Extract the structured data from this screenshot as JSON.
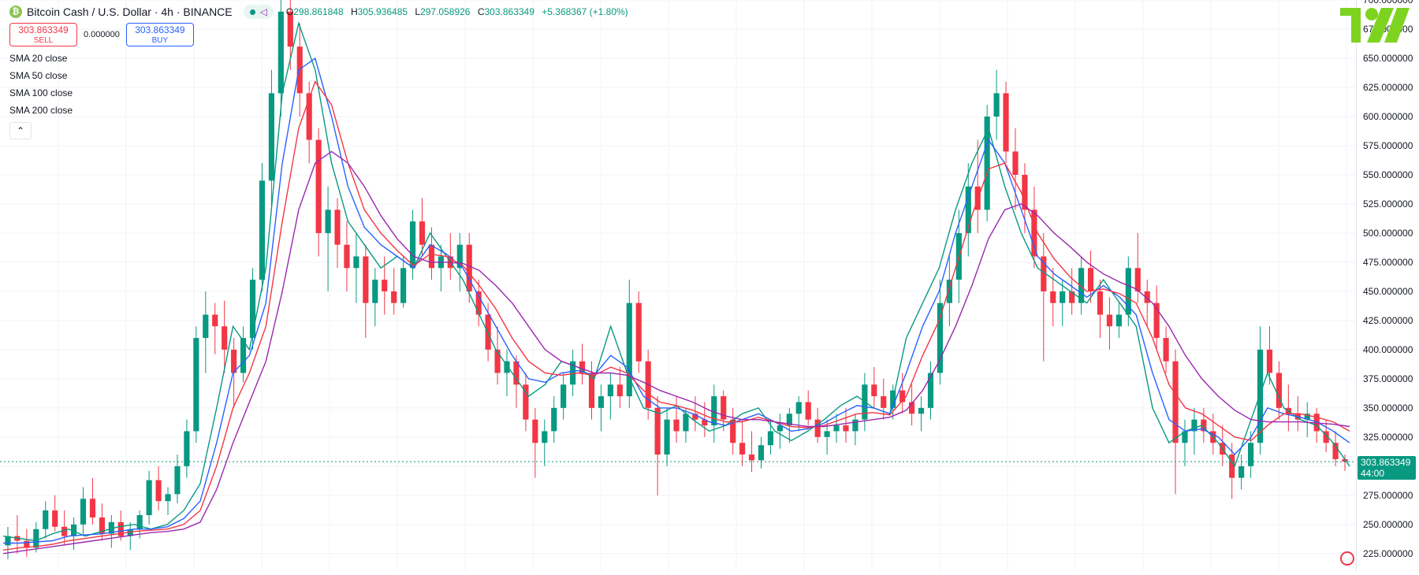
{
  "header": {
    "symbol_icon": "bitcoin-cash-logo",
    "title": "Bitcoin Cash / U.S. Dollar · 4h · BINANCE",
    "ohlc": {
      "o_label": "O",
      "o": "298.861848",
      "h_label": "H",
      "h": "305.936485",
      "l_label": "L",
      "l": "297.058926",
      "c_label": "C",
      "c": "303.863349",
      "change": "+5.368367 (+1.80%)"
    }
  },
  "trade": {
    "sell_price": "303.863349",
    "sell_label": "SELL",
    "spread": "0.000000",
    "buy_price": "303.863349",
    "buy_label": "BUY"
  },
  "indicators": [
    "SMA 20 close",
    "SMA 50 close",
    "SMA 100 close",
    "SMA 200 close"
  ],
  "collapse_glyph": "⌃",
  "price_tag": {
    "price": "303.863349",
    "countdown": "44:00"
  },
  "colors": {
    "up": "#089981",
    "down": "#f23645",
    "sma20": "#089981",
    "sma50": "#2962ff",
    "sma100": "#f23645",
    "sma200": "#9c27b0"
  },
  "chart_data": {
    "type": "line",
    "ylim": [
      210,
      700
    ],
    "y_ticks": [
      "225.000000",
      "250.000000",
      "275.000000",
      "300.000000",
      "325.000000",
      "350.000000",
      "375.000000",
      "400.000000",
      "425.000000",
      "450.000000",
      "475.000000",
      "500.000000",
      "525.000000",
      "550.000000",
      "575.000000",
      "600.000000",
      "625.000000",
      "650.000000",
      "675.000000",
      "700.000000"
    ],
    "y_tick_values": [
      225,
      250,
      275,
      300,
      325,
      350,
      375,
      400,
      425,
      450,
      475,
      500,
      525,
      550,
      575,
      600,
      625,
      650,
      675,
      700
    ],
    "grid": true,
    "last_price": 303.863349,
    "series": [
      {
        "name": "SMA 20 close",
        "values": [
          240,
          238,
          236,
          242,
          246,
          240,
          244,
          248,
          250,
          246,
          250,
          262,
          285,
          350,
          420,
          400,
          470,
          620,
          680,
          640,
          560,
          510,
          490,
          470,
          480,
          470,
          500,
          480,
          460,
          430,
          400,
          380,
          360,
          370,
          390,
          385,
          375,
          420,
          380,
          350,
          345,
          352,
          340,
          330,
          335,
          345,
          350,
          330,
          322,
          330,
          340,
          352,
          360,
          350,
          345,
          410,
          440,
          470,
          520,
          560,
          590,
          540,
          500,
          470,
          460,
          450,
          440,
          460,
          440,
          420,
          350,
          320,
          330,
          335,
          320,
          300,
          340,
          380,
          350,
          340,
          335,
          320,
          300
        ]
      },
      {
        "name": "SMA 50 close",
        "values": [
          234,
          234,
          235,
          236,
          240,
          241,
          242,
          244,
          246,
          246,
          248,
          255,
          270,
          320,
          380,
          395,
          440,
          560,
          640,
          650,
          600,
          540,
          505,
          490,
          480,
          470,
          490,
          482,
          470,
          445,
          420,
          395,
          375,
          372,
          380,
          382,
          378,
          395,
          385,
          360,
          350,
          350,
          345,
          338,
          335,
          340,
          345,
          338,
          330,
          332,
          337,
          345,
          352,
          350,
          345,
          380,
          420,
          450,
          500,
          540,
          580,
          560,
          520,
          480,
          465,
          455,
          445,
          455,
          445,
          430,
          380,
          340,
          330,
          332,
          325,
          310,
          325,
          350,
          345,
          342,
          338,
          330,
          320
        ]
      },
      {
        "name": "SMA 100 close",
        "values": [
          228,
          230,
          231,
          233,
          236,
          238,
          240,
          242,
          244,
          245,
          246,
          250,
          262,
          300,
          350,
          380,
          420,
          510,
          590,
          630,
          610,
          560,
          520,
          500,
          485,
          472,
          482,
          480,
          472,
          455,
          435,
          410,
          390,
          380,
          378,
          380,
          378,
          385,
          380,
          365,
          355,
          352,
          348,
          342,
          338,
          338,
          342,
          338,
          334,
          333,
          335,
          340,
          345,
          346,
          344,
          360,
          395,
          425,
          470,
          515,
          555,
          560,
          535,
          500,
          478,
          462,
          450,
          452,
          448,
          440,
          410,
          370,
          350,
          345,
          335,
          325,
          322,
          335,
          345,
          345,
          342,
          338,
          330
        ]
      },
      {
        "name": "SMA 200 close",
        "values": [
          225,
          227,
          229,
          231,
          233,
          235,
          237,
          239,
          241,
          243,
          244,
          246,
          252,
          280,
          320,
          355,
          390,
          450,
          520,
          560,
          570,
          560,
          540,
          515,
          495,
          480,
          475,
          475,
          474,
          468,
          455,
          440,
          420,
          400,
          390,
          385,
          380,
          380,
          378,
          372,
          365,
          360,
          355,
          348,
          343,
          340,
          340,
          338,
          336,
          334,
          334,
          336,
          338,
          340,
          342,
          348,
          365,
          390,
          420,
          455,
          495,
          520,
          525,
          515,
          500,
          488,
          475,
          465,
          458,
          452,
          440,
          420,
          395,
          375,
          360,
          348,
          340,
          338,
          338,
          338,
          337,
          336,
          334
        ]
      }
    ],
    "candles": [
      [
        232,
        248,
        220,
        240
      ],
      [
        240,
        258,
        225,
        236
      ],
      [
        236,
        246,
        222,
        230
      ],
      [
        230,
        252,
        226,
        246
      ],
      [
        246,
        270,
        238,
        262
      ],
      [
        262,
        275,
        244,
        248
      ],
      [
        248,
        262,
        232,
        240
      ],
      [
        240,
        256,
        228,
        250
      ],
      [
        250,
        282,
        240,
        272
      ],
      [
        272,
        290,
        250,
        256
      ],
      [
        256,
        268,
        236,
        242
      ],
      [
        242,
        258,
        230,
        252
      ],
      [
        252,
        262,
        236,
        240
      ],
      [
        240,
        252,
        228,
        246
      ],
      [
        246,
        262,
        238,
        258
      ],
      [
        258,
        296,
        250,
        288
      ],
      [
        288,
        300,
        262,
        270
      ],
      [
        270,
        282,
        258,
        276
      ],
      [
        276,
        310,
        268,
        300
      ],
      [
        300,
        340,
        290,
        330
      ],
      [
        330,
        420,
        320,
        410
      ],
      [
        410,
        450,
        380,
        430
      ],
      [
        430,
        440,
        396,
        420
      ],
      [
        420,
        442,
        380,
        400
      ],
      [
        400,
        410,
        350,
        380
      ],
      [
        380,
        420,
        372,
        410
      ],
      [
        410,
        470,
        400,
        460
      ],
      [
        460,
        560,
        450,
        545
      ],
      [
        545,
        640,
        520,
        620
      ],
      [
        620,
        700,
        600,
        690
      ],
      [
        690,
        700,
        640,
        660
      ],
      [
        660,
        680,
        600,
        620
      ],
      [
        620,
        630,
        560,
        580
      ],
      [
        580,
        590,
        480,
        500
      ],
      [
        500,
        540,
        450,
        520
      ],
      [
        520,
        530,
        470,
        490
      ],
      [
        490,
        510,
        450,
        470
      ],
      [
        470,
        500,
        440,
        480
      ],
      [
        480,
        490,
        410,
        440
      ],
      [
        440,
        470,
        420,
        460
      ],
      [
        460,
        480,
        430,
        450
      ],
      [
        450,
        470,
        430,
        440
      ],
      [
        440,
        480,
        436,
        470
      ],
      [
        470,
        520,
        460,
        510
      ],
      [
        510,
        530,
        480,
        490
      ],
      [
        490,
        505,
        460,
        470
      ],
      [
        470,
        490,
        450,
        480
      ],
      [
        480,
        500,
        460,
        470
      ],
      [
        470,
        500,
        450,
        490
      ],
      [
        490,
        500,
        440,
        450
      ],
      [
        450,
        460,
        420,
        430
      ],
      [
        430,
        440,
        390,
        400
      ],
      [
        400,
        420,
        370,
        380
      ],
      [
        380,
        400,
        360,
        390
      ],
      [
        390,
        395,
        350,
        370
      ],
      [
        370,
        380,
        330,
        340
      ],
      [
        340,
        350,
        290,
        320
      ],
      [
        320,
        340,
        300,
        330
      ],
      [
        330,
        360,
        320,
        350
      ],
      [
        350,
        380,
        340,
        370
      ],
      [
        370,
        400,
        360,
        390
      ],
      [
        390,
        405,
        370,
        380
      ],
      [
        380,
        390,
        340,
        350
      ],
      [
        350,
        370,
        330,
        360
      ],
      [
        360,
        380,
        340,
        370
      ],
      [
        370,
        385,
        350,
        360
      ],
      [
        360,
        460,
        350,
        440
      ],
      [
        440,
        450,
        380,
        390
      ],
      [
        390,
        400,
        340,
        350
      ],
      [
        350,
        360,
        275,
        310
      ],
      [
        310,
        350,
        300,
        340
      ],
      [
        340,
        360,
        320,
        330
      ],
      [
        330,
        350,
        320,
        345
      ],
      [
        345,
        360,
        330,
        340
      ],
      [
        340,
        355,
        325,
        335
      ],
      [
        335,
        370,
        320,
        360
      ],
      [
        360,
        365,
        330,
        340
      ],
      [
        340,
        350,
        310,
        320
      ],
      [
        320,
        340,
        300,
        310
      ],
      [
        310,
        330,
        295,
        305
      ],
      [
        305,
        325,
        298,
        318
      ],
      [
        318,
        340,
        310,
        330
      ],
      [
        330,
        345,
        315,
        335
      ],
      [
        335,
        350,
        320,
        345
      ],
      [
        345,
        360,
        330,
        355
      ],
      [
        355,
        365,
        335,
        340
      ],
      [
        340,
        350,
        320,
        325
      ],
      [
        325,
        340,
        310,
        330
      ],
      [
        330,
        345,
        320,
        335
      ],
      [
        335,
        350,
        320,
        330
      ],
      [
        330,
        345,
        318,
        340
      ],
      [
        340,
        380,
        330,
        370
      ],
      [
        370,
        385,
        350,
        360
      ],
      [
        360,
        375,
        340,
        350
      ],
      [
        350,
        370,
        340,
        365
      ],
      [
        365,
        380,
        345,
        355
      ],
      [
        355,
        370,
        335,
        345
      ],
      [
        345,
        360,
        330,
        350
      ],
      [
        350,
        390,
        340,
        380
      ],
      [
        380,
        460,
        370,
        440
      ],
      [
        440,
        480,
        420,
        460
      ],
      [
        460,
        520,
        440,
        500
      ],
      [
        500,
        560,
        480,
        540
      ],
      [
        540,
        580,
        500,
        520
      ],
      [
        520,
        610,
        510,
        600
      ],
      [
        600,
        640,
        580,
        620
      ],
      [
        620,
        630,
        560,
        570
      ],
      [
        570,
        590,
        520,
        550
      ],
      [
        550,
        560,
        500,
        520
      ],
      [
        520,
        540,
        470,
        480
      ],
      [
        480,
        500,
        390,
        450
      ],
      [
        450,
        470,
        420,
        440
      ],
      [
        440,
        460,
        420,
        450
      ],
      [
        450,
        470,
        430,
        440
      ],
      [
        440,
        480,
        430,
        470
      ],
      [
        470,
        485,
        440,
        450
      ],
      [
        450,
        460,
        410,
        430
      ],
      [
        430,
        445,
        400,
        420
      ],
      [
        420,
        440,
        410,
        430
      ],
      [
        430,
        480,
        420,
        470
      ],
      [
        470,
        500,
        440,
        450
      ],
      [
        450,
        460,
        420,
        440
      ],
      [
        440,
        455,
        400,
        410
      ],
      [
        410,
        420,
        380,
        390
      ],
      [
        390,
        400,
        276,
        320
      ],
      [
        320,
        340,
        300,
        330
      ],
      [
        330,
        350,
        310,
        340
      ],
      [
        340,
        350,
        320,
        330
      ],
      [
        330,
        345,
        310,
        320
      ],
      [
        320,
        335,
        300,
        310
      ],
      [
        310,
        320,
        272,
        290
      ],
      [
        290,
        310,
        280,
        300
      ],
      [
        300,
        330,
        290,
        320
      ],
      [
        320,
        420,
        310,
        400
      ],
      [
        400,
        420,
        370,
        380
      ],
      [
        380,
        390,
        340,
        350
      ],
      [
        350,
        370,
        330,
        345
      ],
      [
        345,
        360,
        330,
        340
      ],
      [
        340,
        355,
        325,
        345
      ],
      [
        345,
        350,
        320,
        330
      ],
      [
        330,
        340,
        312,
        320
      ],
      [
        320,
        330,
        300,
        306
      ],
      [
        306,
        310,
        296,
        303.86
      ]
    ]
  }
}
